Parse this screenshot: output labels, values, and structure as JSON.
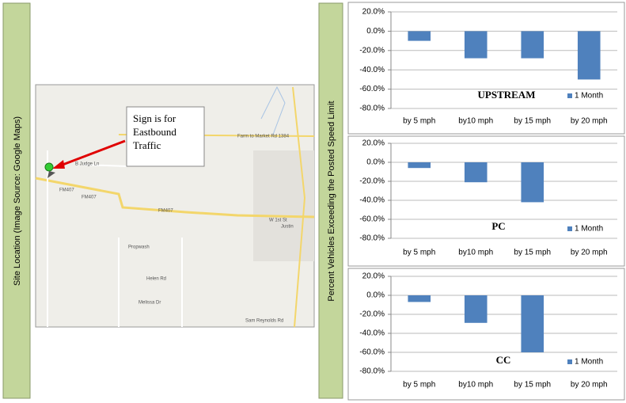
{
  "site_label": "Site Location (Image Source: Google Maps)",
  "y_axis_label": "Percent Vehicles Exceeding the Posted Speed Limit",
  "map": {
    "annotation": [
      "Sign is for",
      "Eastbound",
      "Traffic"
    ],
    "labels": [
      "Farm to Market Rd 1384",
      "FM407",
      "FM407",
      "FM407",
      "W 1st St",
      "Justin",
      "Propwash",
      "Helen Rd",
      "Sam Reynolds Rd",
      "B Judge Ln",
      "Melissa Dr"
    ]
  },
  "chart_data": [
    {
      "type": "bar",
      "title": "UPSTREAM",
      "categories": [
        "by 5 mph",
        "by10 mph",
        "by 15 mph",
        "by 20 mph"
      ],
      "series": [
        {
          "name": "1 Month",
          "color": "#4f81bd",
          "values": [
            -10,
            -28,
            -28,
            -50
          ]
        }
      ],
      "ylim": [
        -80,
        20
      ],
      "yticks": [
        {
          "value": 20,
          "label": "20.0%"
        },
        {
          "value": 0,
          "label": "0.0%"
        },
        {
          "value": -20,
          "label": "-20.0%"
        },
        {
          "value": -40,
          "label": "-40.0%"
        },
        {
          "value": -60,
          "label": "-60.0%"
        },
        {
          "value": -80,
          "label": "-80.0%"
        }
      ],
      "grid": true,
      "legend": "lower right"
    },
    {
      "type": "bar",
      "title": "PC",
      "categories": [
        "by 5 mph",
        "by10 mph",
        "by 15 mph",
        "by 20 mph"
      ],
      "series": [
        {
          "name": "1 Month",
          "color": "#4f81bd",
          "values": [
            -6,
            -21,
            -42,
            null
          ]
        }
      ],
      "ylim": [
        -80,
        20
      ],
      "yticks": [
        {
          "value": 20,
          "label": "20.0%"
        },
        {
          "value": 0,
          "label": "0.0%"
        },
        {
          "value": -20,
          "label": "-20.0%"
        },
        {
          "value": -40,
          "label": "-40.0%"
        },
        {
          "value": -60,
          "label": "-60.0%"
        },
        {
          "value": -80,
          "label": "-80.0%"
        }
      ],
      "grid": true,
      "legend": "lower right"
    },
    {
      "type": "bar",
      "title": "CC",
      "categories": [
        "by 5 mph",
        "by10 mph",
        "by 15 mph",
        "by 20 mph"
      ],
      "series": [
        {
          "name": "1 Month",
          "color": "#4f81bd",
          "values": [
            -7,
            -29,
            -60,
            null
          ]
        }
      ],
      "ylim": [
        -80,
        20
      ],
      "yticks": [
        {
          "value": 20,
          "label": "20.0%"
        },
        {
          "value": 0,
          "label": "0.0%"
        },
        {
          "value": -20,
          "label": "-20.0%"
        },
        {
          "value": -40,
          "label": "-40.0%"
        },
        {
          "value": -60,
          "label": "-60.0%"
        },
        {
          "value": -80,
          "label": "-80.0%"
        }
      ],
      "grid": true,
      "legend": "lower right"
    }
  ]
}
